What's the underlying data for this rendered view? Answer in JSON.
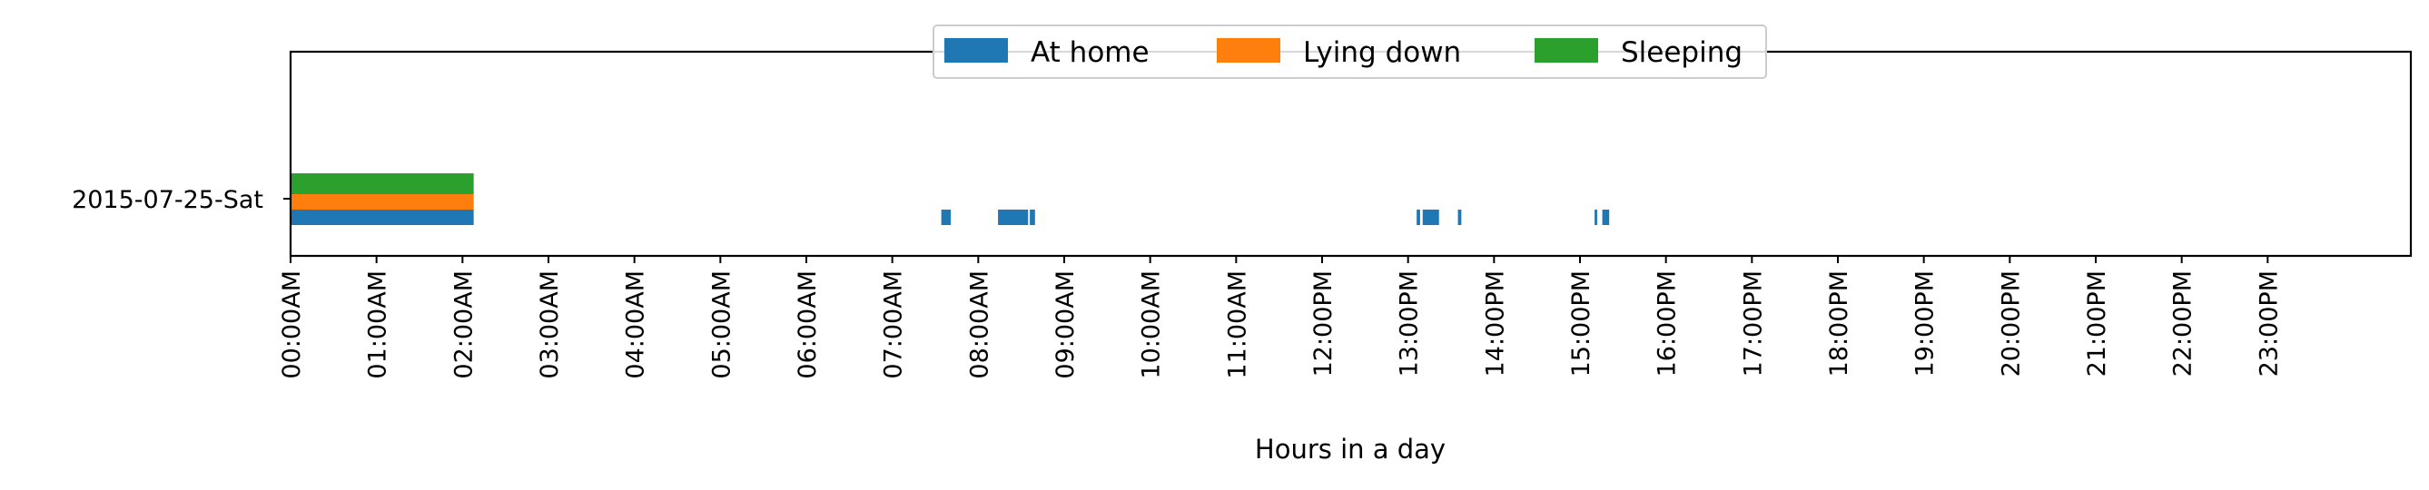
{
  "chart_data": {
    "type": "bar",
    "xlabel": "Hours in a day",
    "ylabel": "",
    "xlim": [
      0,
      24
    ],
    "categories": [
      "2015-07-25-Sat"
    ],
    "tick_labels": [
      "00:00AM",
      "01:00AM",
      "02:00AM",
      "03:00AM",
      "04:00AM",
      "05:00AM",
      "06:00AM",
      "07:00AM",
      "08:00AM",
      "09:00AM",
      "10:00AM",
      "11:00AM",
      "12:00PM",
      "13:00PM",
      "14:00PM",
      "15:00PM",
      "16:00PM",
      "17:00PM",
      "18:00PM",
      "19:00PM",
      "20:00PM",
      "21:00PM",
      "22:00PM",
      "23:00PM"
    ],
    "legend_position": "top-center",
    "grid": false,
    "series": [
      {
        "name": "At home",
        "color": "#1f77b4",
        "intervals": [
          [
            0.0,
            2.13
          ],
          [
            7.57,
            7.68
          ],
          [
            8.23,
            8.58
          ],
          [
            8.6,
            8.66
          ],
          [
            13.1,
            13.14
          ],
          [
            13.17,
            13.36
          ],
          [
            13.58,
            13.62
          ],
          [
            15.17,
            15.2
          ],
          [
            15.26,
            15.34
          ]
        ]
      },
      {
        "name": "Lying down",
        "color": "#ff7f0e",
        "intervals": [
          [
            0.0,
            2.13
          ]
        ]
      },
      {
        "name": "Sleeping",
        "color": "#2ca02c",
        "intervals": [
          [
            0.0,
            2.13
          ]
        ]
      }
    ]
  }
}
